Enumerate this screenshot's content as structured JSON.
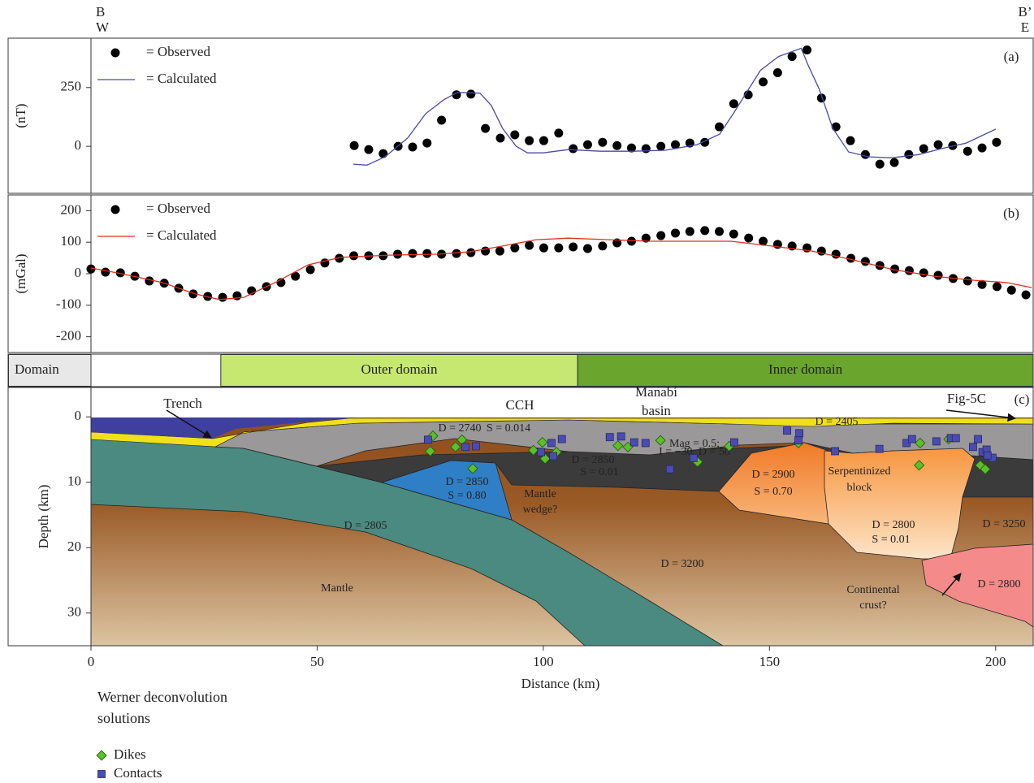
{
  "profile_labels": {
    "start": "B",
    "start_direction": "W",
    "end": "B’",
    "end_direction": "E"
  },
  "chart_data": [
    {
      "type": "scatter_line",
      "panel_label": "(a)",
      "ylabel": "(nT)",
      "xlim": [
        0,
        208.3
      ],
      "ylim": [
        -200,
        460
      ],
      "yticks": [
        0,
        250
      ],
      "series": [
        {
          "name": "= Observed",
          "mode": "markers",
          "color": "#000000",
          "x": [
            58.2,
            61.4,
            64.6,
            67.9,
            71.1,
            74.3,
            77.5,
            80.8,
            84,
            87.2,
            90.5,
            93.7,
            96.9,
            100.1,
            103.4,
            106.6,
            109.8,
            113.1,
            116.3,
            119.5,
            122.7,
            126,
            129.2,
            132.4,
            135.7,
            138.9,
            142.1,
            145.3,
            148.6,
            151.8,
            155,
            158.3,
            161.5,
            164.7,
            167.9,
            171.2,
            174.4,
            177.6,
            180.8,
            184.1,
            187.3,
            190.5,
            193.8,
            197,
            200.2
          ],
          "values": [
            3,
            -14,
            -31,
            0,
            -3,
            14,
            111,
            219,
            222,
            76,
            35,
            49,
            24,
            24,
            56,
            -10,
            7,
            17,
            3,
            -7,
            -10,
            0,
            7,
            14,
            17,
            83,
            181,
            219,
            274,
            313,
            382,
            410,
            205,
            83,
            24,
            -35,
            -76,
            -69,
            -35,
            -10,
            7,
            3,
            -21,
            -7,
            17
          ]
        },
        {
          "name": "= Calculated",
          "mode": "line",
          "color": "#4b4ba3",
          "x": [
            58,
            61,
            65,
            70,
            74,
            78,
            81,
            86,
            88.5,
            91,
            94,
            96.5,
            100,
            105.5,
            112.7,
            120,
            127,
            134,
            139,
            142,
            148,
            152,
            157,
            158.5,
            161,
            164,
            167.5,
            172,
            177,
            183,
            188,
            193.5,
            200
          ],
          "values": [
            -76,
            -80,
            -45,
            35,
            139,
            198,
            229,
            226,
            174,
            76,
            0,
            -28,
            -28,
            -14,
            -21,
            -21,
            -17,
            7,
            52,
            139,
            323,
            382,
            417,
            347,
            243,
            76,
            -24,
            -45,
            -49,
            -35,
            -10,
            14,
            73
          ]
        }
      ]
    },
    {
      "type": "scatter_line",
      "panel_label": "(b)",
      "ylabel": "(mGal)",
      "xlim": [
        0,
        208.3
      ],
      "ylim": [
        -250,
        250
      ],
      "yticks": [
        -200,
        -100,
        0,
        100,
        200
      ],
      "series": [
        {
          "name": "= Observed",
          "mode": "markers",
          "color": "#000000",
          "x": [
            0,
            3.2,
            6.5,
            9.7,
            12.9,
            16.2,
            19.4,
            22.6,
            25.8,
            29.1,
            32.3,
            35.5,
            38.8,
            42,
            45.2,
            48.5,
            51.7,
            54.9,
            58.1,
            61.4,
            64.6,
            67.8,
            71.1,
            74.3,
            77.5,
            80.8,
            84,
            87.2,
            90.4,
            93.7,
            96.9,
            100.1,
            103.4,
            106.6,
            109.8,
            113.1,
            116.3,
            119.5,
            122.7,
            126,
            129.2,
            132.4,
            135.7,
            138.9,
            142.1,
            145.4,
            148.6,
            151.8,
            155,
            158.3,
            161.5,
            164.7,
            168,
            171.2,
            174.4,
            177.7,
            180.9,
            184.1,
            187.3,
            190.6,
            193.8,
            197,
            200.3,
            203.5,
            206.7
          ],
          "values": [
            15,
            5,
            3,
            -8,
            -23,
            -30,
            -46,
            -64,
            -72,
            -75,
            -70,
            -54,
            -41,
            -28,
            -8,
            13,
            34,
            49,
            57,
            57,
            57,
            62,
            64,
            64,
            62,
            64,
            67,
            72,
            72,
            82,
            90,
            82,
            82,
            85,
            80,
            88,
            98,
            103,
            113,
            121,
            129,
            134,
            137,
            134,
            126,
            113,
            103,
            93,
            88,
            82,
            72,
            62,
            49,
            39,
            26,
            15,
            10,
            3,
            -5,
            -15,
            -23,
            -34,
            -41,
            -52,
            -67
          ]
        },
        {
          "name": "= Calculated",
          "mode": "line",
          "color": "#e03020",
          "x": [
            0,
            6.8,
            15.8,
            23,
            28.4,
            33.8,
            41,
            48,
            55.3,
            66,
            77,
            84,
            91,
            98.4,
            105.6,
            114.5,
            123.5,
            132.5,
            141.5,
            150.4,
            159.4,
            168.4,
            177.4,
            186.4,
            195.3,
            202.5,
            208
          ],
          "values": [
            18,
            0,
            -28,
            -64,
            -82,
            -75,
            -26,
            28,
            52,
            59,
            62,
            70,
            88,
            108,
            113,
            108,
            103,
            103,
            103,
            88,
            72,
            44,
            13,
            -8,
            -21,
            -28,
            -44
          ]
        }
      ]
    },
    {
      "type": "domain_bar",
      "label": "Domain",
      "xlim": [
        0,
        208.3
      ],
      "domains": [
        {
          "name": "Outer domain",
          "start": 28.7,
          "end": 107.6,
          "color": "#c6e870"
        },
        {
          "name": "Inner domain",
          "start": 107.6,
          "end": 208.3,
          "color": "#6aa52e"
        }
      ]
    },
    {
      "type": "section",
      "panel_label": "(c)",
      "xlabel": "Distance (km)",
      "ylabel": "Depth (km)",
      "xlim": [
        0,
        208.3
      ],
      "ylim": [
        35,
        -4.5
      ],
      "xticks": [
        0,
        50,
        100,
        150,
        200
      ],
      "yticks": [
        0,
        10,
        20,
        30
      ],
      "annotations": [
        "Trench",
        "CCH",
        "Manabí",
        "basin",
        "Fig-5C",
        "D = 2740",
        "S = 0.014",
        "D = 2405",
        "Mag = 0.5;",
        "I = −30; D = 50",
        "D = 2850",
        "S = 0.01",
        "D = 2850",
        "S = 0.80",
        "Mantle",
        "wedge?",
        "D = 2900",
        "S = 0.70",
        "Serpentinized",
        "block",
        "D = 2800",
        "S = 0.01",
        "D = 3250",
        "D = 2805",
        "D = 3200",
        "Mantle",
        "Continental",
        "crust?",
        "D = 2800"
      ],
      "legend_title": "Werner deconvolution solutions",
      "series": [
        {
          "name": "Dikes",
          "marker": "diamond",
          "color": "#5cbf2a",
          "x": [
            75.6,
            75,
            80.6,
            82,
            84.4,
            97.8,
            99.8,
            100.4,
            102.9,
            116.5,
            118.7,
            125.9,
            134.1,
            141.1,
            156.4,
            183.3,
            183.1,
            189.6,
            196.6,
            197.7
          ],
          "values": [
            2.9,
            5.25,
            4.6,
            3.5,
            7.9,
            5.1,
            3.9,
            6.4,
            5.4,
            4.4,
            4.6,
            3.6,
            6.9,
            4.5,
            4,
            4,
            7.4,
            3.4,
            7.4,
            8
          ]
        },
        {
          "name": "Contacts",
          "marker": "square",
          "color": "#4b4bb0",
          "x": [
            74.5,
            82.8,
            85.1,
            99.5,
            101.8,
            102.2,
            104.1,
            114.7,
            117.2,
            120.1,
            122.6,
            128,
            133.2,
            142.2,
            153.9,
            156.6,
            156.4,
            164.5,
            174.3,
            180.3,
            181.5,
            186.9,
            190.1,
            191.2,
            195,
            196.1,
            197.1,
            198,
            199.3,
            198.2
          ],
          "values": [
            3.5,
            4.6,
            4.5,
            5.4,
            4,
            6,
            3.4,
            3.1,
            3,
            3.9,
            4,
            8,
            6.3,
            3.9,
            2.1,
            2.5,
            3.6,
            5.25,
            4.9,
            4,
            3.4,
            3.75,
            3.25,
            3.25,
            4.6,
            3.4,
            5.4,
            5,
            6.25,
            5.9
          ]
        }
      ]
    }
  ]
}
